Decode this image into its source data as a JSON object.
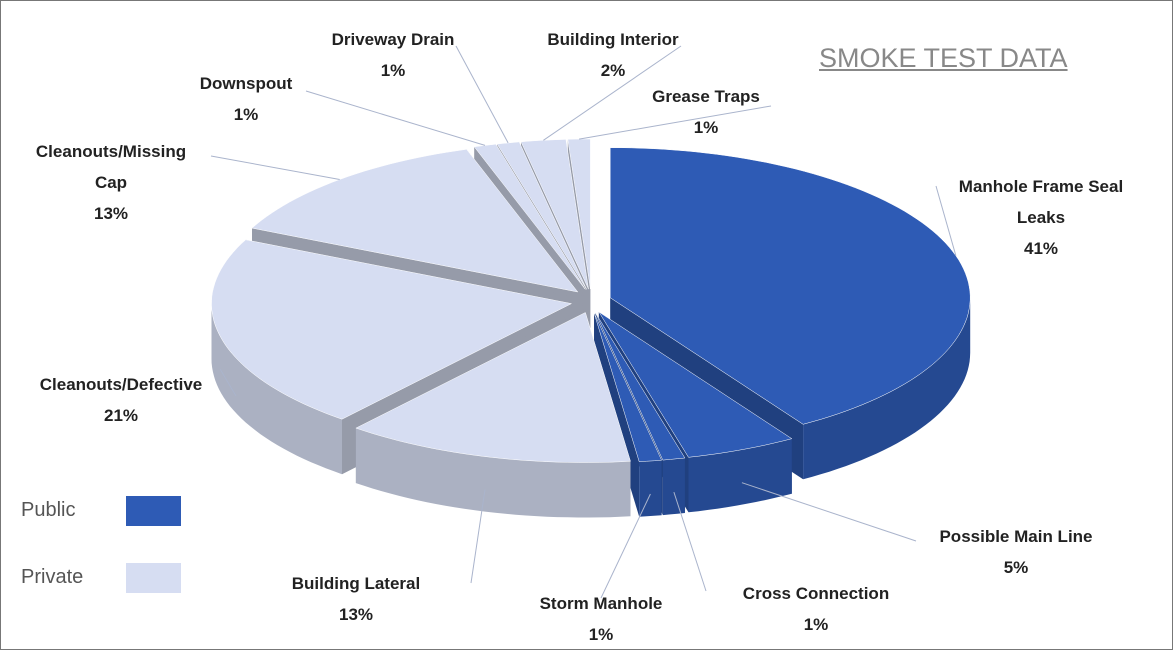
{
  "chart_data": {
    "type": "pie",
    "title": "SMOKE TEST DATA",
    "categories": [
      "Manhole Frame Seal Leaks",
      "Possible Main Line",
      "Cross Connection",
      "Storm Manhole",
      "Building Lateral",
      "Cleanouts/Defective",
      "Cleanouts/Missing Cap",
      "Downspout",
      "Driveway Drain",
      "Building Interior",
      "Grease Traps"
    ],
    "values": [
      41,
      5,
      1,
      1,
      13,
      21,
      13,
      1,
      1,
      2,
      1
    ],
    "value_labels": [
      "41%",
      "5%",
      "1%",
      "1%",
      "13%",
      "21%",
      "13%",
      "1%",
      "1%",
      "2%",
      "1%"
    ],
    "colors": [
      "#2e5bb5",
      "#2e5bb5",
      "#2e5bb5",
      "#2e5bb5",
      "#d6ddf2",
      "#d6ddf2",
      "#d6ddf2",
      "#d6ddf2",
      "#d6ddf2",
      "#d6ddf2",
      "#d6ddf2"
    ],
    "legend": [
      {
        "name": "Public",
        "color": "#2e5bb5"
      },
      {
        "name": "Private",
        "color": "#d6ddf2"
      }
    ]
  }
}
